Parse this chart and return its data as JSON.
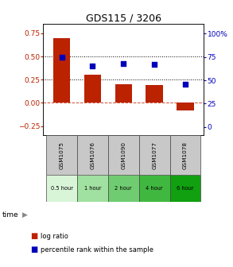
{
  "title": "GDS115 / 3206",
  "samples": [
    "GSM1075",
    "GSM1076",
    "GSM1090",
    "GSM1077",
    "GSM1078"
  ],
  "time_labels": [
    "0.5 hour",
    "1 hour",
    "2 hour",
    "4 hour",
    "6 hour"
  ],
  "log_ratio": [
    0.7,
    0.3,
    0.2,
    0.19,
    -0.08
  ],
  "percentile_pct": [
    75,
    65,
    68,
    67,
    46
  ],
  "bar_color": "#bb2200",
  "dot_color": "#0000bb",
  "ylim_left": [
    -0.35,
    0.85
  ],
  "ylim_right": [
    -8.75,
    110
  ],
  "yticks_left": [
    -0.25,
    0.0,
    0.25,
    0.5,
    0.75
  ],
  "yticks_right": [
    0,
    25,
    50,
    75,
    100
  ],
  "hlines": [
    0.25,
    0.5
  ],
  "zero_line": 0.0,
  "background_color": "#ffffff",
  "time_colors": [
    "#d8f5d8",
    "#a0e0a0",
    "#70cc70",
    "#40b840",
    "#10a010"
  ],
  "gray_sample_bg": "#c8c8c8"
}
